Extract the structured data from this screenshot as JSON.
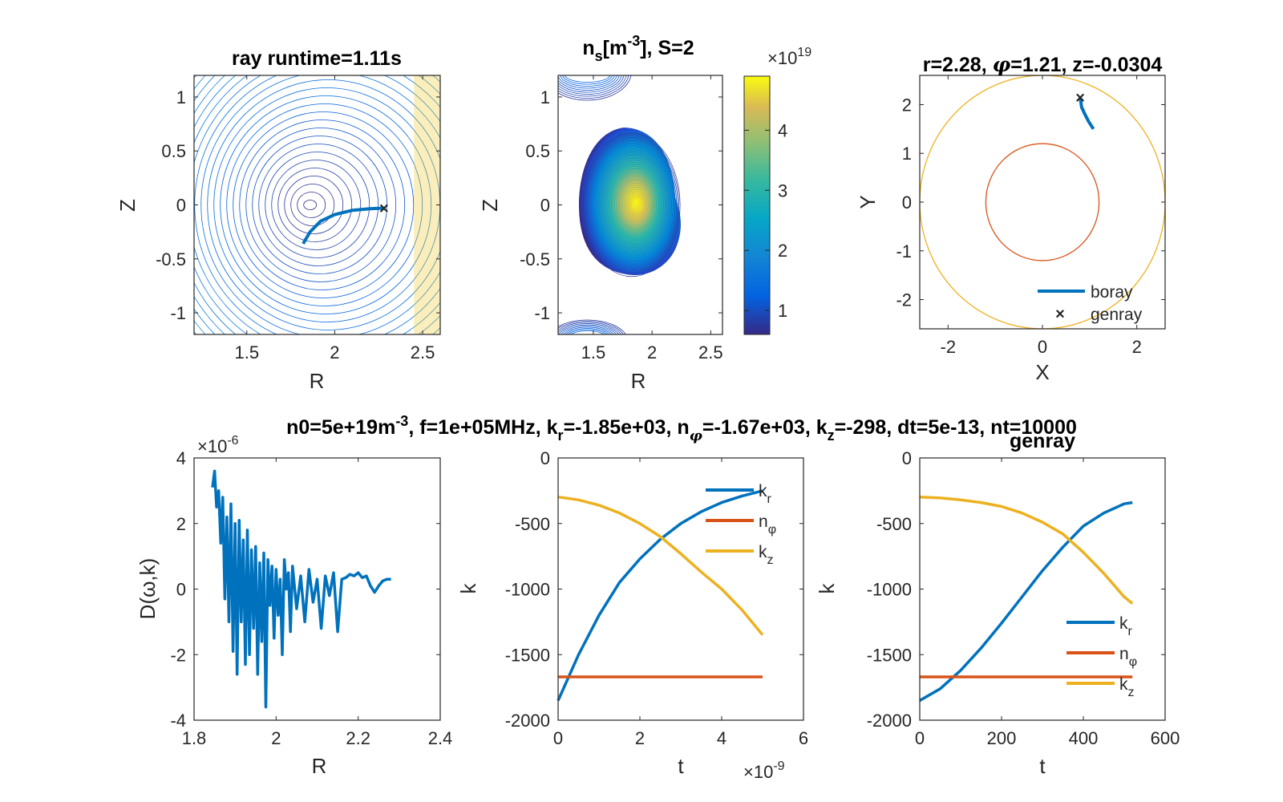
{
  "figure": {
    "suptitle": {
      "pre": "n0=5e+19m",
      "sup": "-3",
      "rest": ", f=1e+05MHz, k",
      "kr_sub": "r",
      "kr_val": "=-1.85e+03, n",
      "nphi_sub": "φ",
      "nphi_val": "=-1.67e+03, k",
      "kz_sub": "z",
      "kz_val": "=-298, dt=5e-13, nt=10000"
    }
  },
  "panels": {
    "p1": {
      "title": "ray runtime=1.11s",
      "xlabel": "R",
      "ylabel": "Z"
    },
    "p2": {
      "title_pre": "n",
      "title_sub": "s",
      "title_mid": "[m",
      "title_sup": "-3",
      "title_post": "], S=2",
      "xlabel": "R",
      "ylabel": "Z",
      "colorbar_exp_base": "×10",
      "colorbar_exp": "19"
    },
    "p3": {
      "title_pre": "r=2.28, ",
      "title_phi": "φ",
      "title_post": "=1.21, z=-0.0304",
      "xlabel": "X",
      "ylabel": "Y",
      "legend": [
        "boray",
        "genray"
      ]
    },
    "p4": {
      "ylabel": "D(ω,k)",
      "xlabel": "R",
      "exp_base": "×10",
      "exp": "-6"
    },
    "p5": {
      "xlabel": "t",
      "ylabel": "k",
      "exp_base": "×10",
      "exp": "-9"
    },
    "p6": {
      "title": "genray",
      "xlabel": "t",
      "ylabel": "k"
    }
  },
  "colors": {
    "blue": "#0072BD",
    "orange": "#D95319",
    "yellow": "#EDB120",
    "red": "#FF0000"
  },
  "chart_data": [
    {
      "type": "contour",
      "panel": "p1",
      "title": "ray runtime=1.11s",
      "xlabel": "R",
      "ylabel": "Z",
      "xlim": [
        1.2,
        2.6
      ],
      "ylim": [
        -1.2,
        1.2
      ],
      "xticks": [
        "1.5",
        "2",
        "2.5"
      ],
      "yticks": [
        "-1",
        "-0.5",
        "0",
        "0.5",
        "1"
      ],
      "ray": {
        "x": [
          1.82,
          1.86,
          1.92,
          2.0,
          2.1,
          2.2,
          2.28
        ],
        "y": [
          -0.36,
          -0.25,
          -0.15,
          -0.09,
          -0.05,
          -0.035,
          -0.03
        ]
      },
      "genray_marker": {
        "x": 2.28,
        "y": -0.03
      }
    },
    {
      "type": "contour",
      "panel": "p2",
      "xlabel": "R",
      "ylabel": "Z",
      "xlim": [
        1.2,
        2.6
      ],
      "ylim": [
        -1.2,
        1.2
      ],
      "xticks": [
        "1.5",
        "2",
        "2.5"
      ],
      "yticks": [
        "-1",
        "-0.5",
        "0",
        "0.5",
        "1"
      ],
      "colorbar": {
        "ticks": [
          "1",
          "2",
          "3",
          "4"
        ],
        "range": [
          0.6,
          4.9
        ],
        "multiplier": "×10^19"
      }
    },
    {
      "type": "line",
      "panel": "p3",
      "xlabel": "X",
      "ylabel": "Y",
      "xlim": [
        -2.6,
        2.6
      ],
      "ylim": [
        -2.6,
        2.6
      ],
      "xticks": [
        "-2",
        "0",
        "2"
      ],
      "yticks": [
        "-2",
        "-1",
        "0",
        "1",
        "2"
      ],
      "circles": [
        {
          "r": 1.2,
          "color": "#D95319"
        },
        {
          "r": 2.6,
          "color": "#EDB120"
        }
      ],
      "series": [
        {
          "name": "boray",
          "x": [
            0.8,
            0.83,
            0.9,
            0.98,
            1.08
          ],
          "y": [
            2.15,
            1.95,
            1.8,
            1.65,
            1.5
          ]
        }
      ],
      "markers": [
        {
          "name": "genray",
          "x": 0.8,
          "y": 2.15
        }
      ]
    },
    {
      "type": "line",
      "panel": "p4",
      "xlabel": "R",
      "ylabel": "D(ω,k)",
      "xlim": [
        1.8,
        2.4
      ],
      "ylim": [
        -4,
        4
      ],
      "multiplier": "×10^-6",
      "xticks": [
        "1.8",
        "2",
        "2.2",
        "2.4"
      ],
      "yticks": [
        "-4",
        "-2",
        "0",
        "2",
        "4"
      ],
      "series": [
        {
          "x": [
            1.845,
            1.85,
            1.855,
            1.86,
            1.865,
            1.87,
            1.875,
            1.88,
            1.885,
            1.89,
            1.895,
            1.9,
            1.905,
            1.91,
            1.915,
            1.92,
            1.925,
            1.93,
            1.935,
            1.94,
            1.945,
            1.95,
            1.955,
            1.96,
            1.965,
            1.97,
            1.975,
            1.98,
            1.985,
            1.99,
            1.995,
            2.0,
            2.005,
            2.01,
            2.015,
            2.02,
            2.025,
            2.03,
            2.035,
            2.04,
            2.05,
            2.06,
            2.07,
            2.08,
            2.09,
            2.1,
            2.11,
            2.12,
            2.13,
            2.14,
            2.15,
            2.16,
            2.17,
            2.18,
            2.19,
            2.2,
            2.21,
            2.22,
            2.23,
            2.24,
            2.25,
            2.26,
            2.27,
            2.28
          ],
          "y": [
            3.1,
            3.6,
            2.5,
            3.0,
            1.4,
            2.8,
            -0.3,
            2.2,
            -1.0,
            2.6,
            -1.9,
            2.0,
            -2.6,
            2.1,
            -1.0,
            1.5,
            -2.3,
            1.8,
            -2.0,
            1.2,
            -1.2,
            1.3,
            -2.6,
            0.8,
            -1.6,
            1.1,
            -3.6,
            0.9,
            -0.5,
            0.7,
            -1.5,
            0.6,
            -0.8,
            0.3,
            -2.0,
            0.9,
            0.0,
            0.5,
            -1.3,
            0.7,
            -0.6,
            0.4,
            -1.0,
            0.6,
            -0.4,
            0.3,
            -1.2,
            0.4,
            -0.2,
            0.5,
            -1.3,
            0.3,
            0.35,
            0.45,
            0.4,
            0.5,
            0.35,
            0.4,
            0.1,
            -0.1,
            0.1,
            0.25,
            0.3,
            0.3
          ]
        }
      ]
    },
    {
      "type": "line",
      "panel": "p5",
      "xlabel": "t",
      "ylabel": "k",
      "xlim": [
        0,
        6
      ],
      "ylim": [
        -2000,
        0
      ],
      "x_multiplier": "×10^-9",
      "xticks": [
        "0",
        "2",
        "4",
        "6"
      ],
      "yticks": [
        "-2000",
        "-1500",
        "-1000",
        "-500",
        "0"
      ],
      "series": [
        {
          "name": "k_r",
          "x": [
            0,
            0.5,
            1,
            1.5,
            2,
            2.5,
            3,
            3.5,
            4,
            4.5,
            5
          ],
          "y": [
            -1850,
            -1500,
            -1200,
            -950,
            -770,
            -620,
            -500,
            -410,
            -340,
            -290,
            -250
          ]
        },
        {
          "name": "n_φ",
          "x": [
            0,
            5
          ],
          "y": [
            -1670,
            -1670
          ]
        },
        {
          "name": "k_z",
          "x": [
            0,
            0.5,
            1,
            1.5,
            2,
            2.5,
            3,
            3.5,
            4,
            4.5,
            5
          ],
          "y": [
            -298,
            -320,
            -360,
            -420,
            -500,
            -600,
            -730,
            -870,
            -1000,
            -1160,
            -1350
          ]
        }
      ]
    },
    {
      "type": "line",
      "panel": "p6",
      "title": "genray",
      "xlabel": "t",
      "ylabel": "k",
      "xlim": [
        0,
        600
      ],
      "ylim": [
        -2000,
        0
      ],
      "xticks": [
        "0",
        "200",
        "400",
        "600"
      ],
      "yticks": [
        "-2000",
        "-1500",
        "-1000",
        "-500",
        "0"
      ],
      "series": [
        {
          "name": "k_r",
          "x": [
            0,
            50,
            100,
            150,
            200,
            250,
            300,
            350,
            400,
            450,
            500,
            520
          ],
          "y": [
            -1850,
            -1760,
            -1620,
            -1450,
            -1260,
            -1060,
            -860,
            -680,
            -520,
            -420,
            -350,
            -340
          ]
        },
        {
          "name": "n_φ",
          "x": [
            0,
            520
          ],
          "y": [
            -1670,
            -1670
          ]
        },
        {
          "name": "k_z",
          "x": [
            0,
            50,
            100,
            150,
            200,
            250,
            300,
            350,
            400,
            450,
            500,
            520
          ],
          "y": [
            -298,
            -305,
            -320,
            -340,
            -370,
            -420,
            -490,
            -580,
            -720,
            -880,
            -1060,
            -1110
          ]
        }
      ]
    }
  ]
}
